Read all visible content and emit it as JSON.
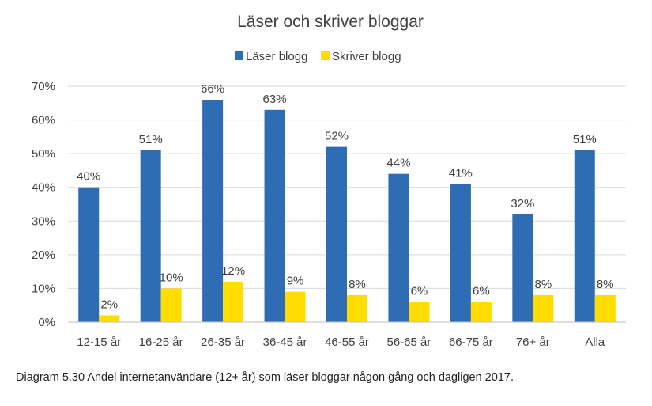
{
  "chart_data": {
    "type": "bar",
    "title": "Läser och skriver bloggar",
    "categories": [
      "12-15 år",
      "16-25 år",
      "26-35 år",
      "36-45 år",
      "46-55 år",
      "56-65 år",
      "66-75 år",
      "76+ år",
      "Alla"
    ],
    "series": [
      {
        "name": "Läser blogg",
        "color": "#2e6db4",
        "values": [
          40,
          51,
          66,
          63,
          52,
          44,
          41,
          32,
          51
        ]
      },
      {
        "name": "Skriver blogg",
        "color": "#ffdd00",
        "values": [
          2,
          10,
          12,
          9,
          8,
          6,
          6,
          8,
          8
        ]
      }
    ],
    "ylim": [
      0,
      70
    ],
    "yticks": [
      0,
      10,
      20,
      30,
      40,
      50,
      60,
      70
    ],
    "value_format": "%",
    "xlabel": "",
    "ylabel": "",
    "grid": true,
    "legend_position": "top"
  },
  "caption": "Diagram 5.30 Andel internetanvändare (12+ år) som läser bloggar någon gång och dagligen 2017."
}
